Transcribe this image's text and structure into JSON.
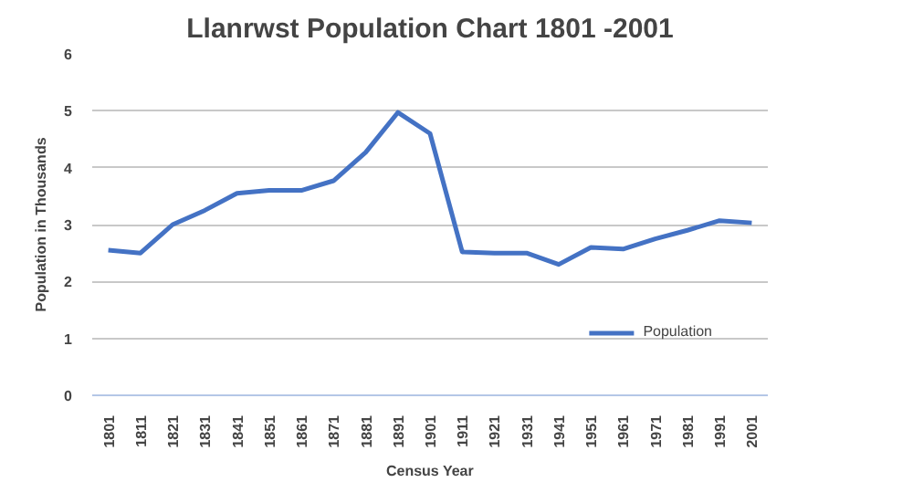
{
  "chart_data": {
    "type": "line",
    "title": "Llanrwst Population Chart 1801 -2001",
    "xlabel": "Census Year",
    "ylabel": "Population in Thousands",
    "categories": [
      "1801",
      "1811",
      "1821",
      "1831",
      "1841",
      "1851",
      "1861",
      "1871",
      "1881",
      "1891",
      "1901",
      "1911",
      "1921",
      "1931",
      "1941",
      "1951",
      "1961",
      "1971",
      "1981",
      "1991",
      "2001"
    ],
    "series": [
      {
        "name": "Population",
        "color": "#4472c4",
        "values": [
          2.55,
          2.5,
          3.0,
          3.25,
          3.55,
          3.6,
          3.6,
          3.77,
          4.27,
          4.97,
          4.6,
          2.52,
          2.5,
          2.5,
          2.3,
          2.6,
          2.57,
          2.75,
          2.9,
          3.07,
          3.03
        ]
      }
    ],
    "ylim": [
      0,
      6
    ],
    "yticks": [
      0,
      1,
      2,
      3,
      4,
      5,
      6
    ],
    "grid": "y",
    "legend": "bottom right",
    "marker": "none",
    "line_style": "solid"
  }
}
